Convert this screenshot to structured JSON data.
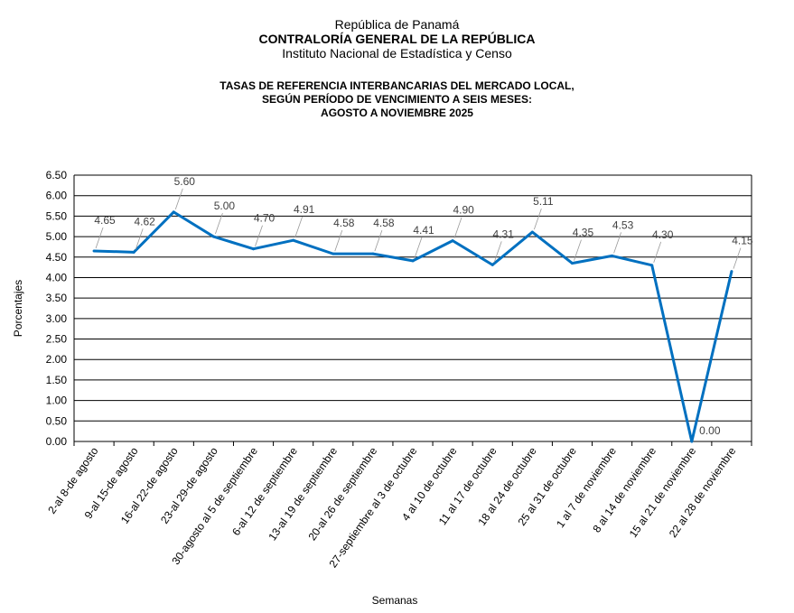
{
  "header": {
    "country": "República de Panamá",
    "institution": "CONTRALORÍA GENERAL DE LA REPÚBLICA",
    "institute": "Instituto Nacional de Estadística y Censo"
  },
  "chart_data": {
    "type": "line",
    "title": [
      "TASAS DE REFERENCIA INTERBANCARIAS DEL MERCADO LOCAL,",
      "SEGÚN PERÍODO DE VENCIMIENTO A SEIS MESES:",
      "AGOSTO A NOVIEMBRE 2025"
    ],
    "xlabel": "Semanas",
    "ylabel": "Porcentajes",
    "ylim": [
      0,
      6.5
    ],
    "yticks": [
      "0.00",
      "0.50",
      "1.00",
      "1.50",
      "2.00",
      "2.50",
      "3.00",
      "3.50",
      "4.00",
      "4.50",
      "5.00",
      "5.50",
      "6.00",
      "6.50"
    ],
    "grid": true,
    "line_color": "#0070C0",
    "categories": [
      "2-al 8-de agosto",
      "9-al 15-de agosto",
      "16-al 22-de agosto",
      "23-al 29-de agosto",
      "30-agosto al 5 de septiembre",
      "6-al 12 de septiembre",
      "13-al 19 de septiembre",
      "20-al 26 de septiembre",
      "27-septiembre al 3 de octubre",
      "4 al 10 de octubre",
      "11 al 17 de octubre",
      "18 al 24 de octubre",
      "25 al 31 de octubre",
      "1 al 7 de noviembre",
      "8 al 14 de noviembre",
      "15 al 21 de noviembre",
      "22 al 28 de noviembre"
    ],
    "values": [
      4.65,
      4.62,
      5.6,
      5.0,
      4.7,
      4.91,
      4.58,
      4.58,
      4.41,
      4.9,
      4.31,
      5.11,
      4.35,
      4.53,
      4.3,
      0.0,
      4.15
    ],
    "data_labels": [
      "4.65",
      "4.62",
      "5.60",
      "5.00",
      "4.70",
      "4.91",
      "4.58",
      "4.58",
      "4.41",
      "4.90",
      "4.31",
      "5.11",
      "4.35",
      "4.53",
      "4.30",
      "0.00",
      "4.15"
    ]
  }
}
